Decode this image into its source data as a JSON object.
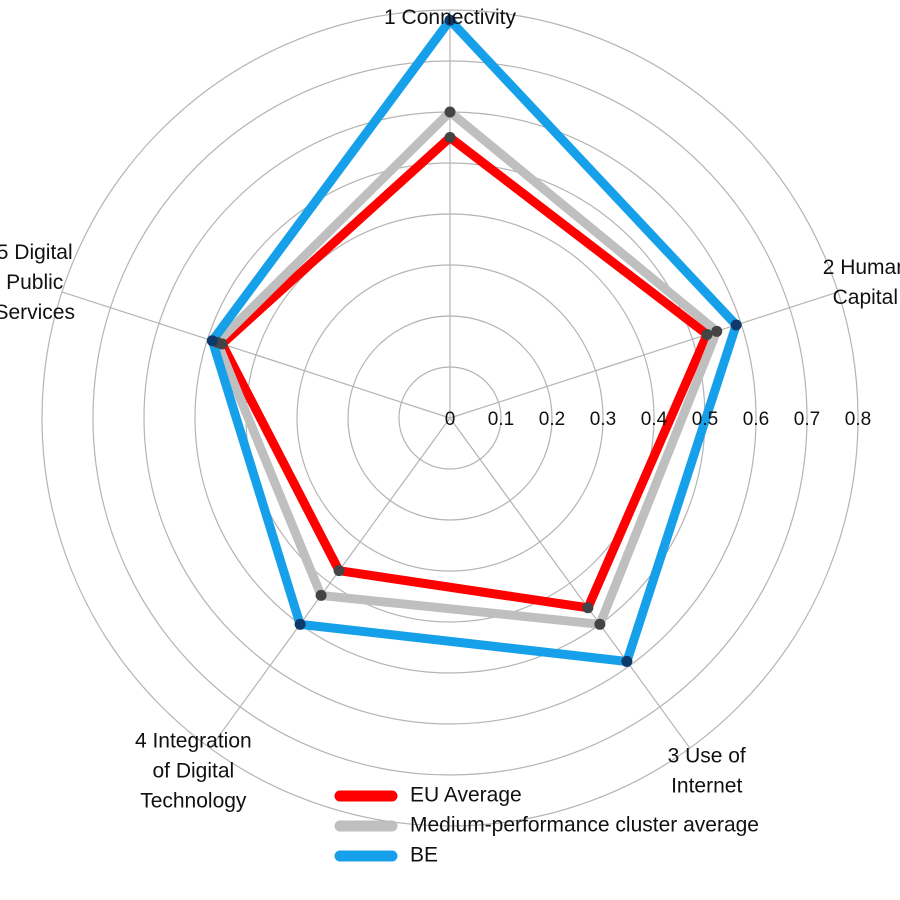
{
  "chart_data": {
    "type": "radar",
    "title": "",
    "axes": [
      {
        "label_lines": [
          "1 Connectivity"
        ]
      },
      {
        "label_lines": [
          "2 Human",
          "Capital"
        ]
      },
      {
        "label_lines": [
          "3 Use of",
          "Internet"
        ]
      },
      {
        "label_lines": [
          "4 Integration",
          "of Digital",
          "Technology"
        ]
      },
      {
        "label_lines": [
          "5 Digital",
          "Public",
          "Services"
        ]
      }
    ],
    "rlim": [
      0,
      0.8
    ],
    "ticks": [
      "0",
      "0.1",
      "0.2",
      "0.3",
      "0.4",
      "0.5",
      "0.6",
      "0.7",
      "0.8"
    ],
    "grid": true,
    "legend_position": "bottom",
    "series": [
      {
        "name": "EU Average",
        "color": "#ff0000",
        "values": [
          0.55,
          0.53,
          0.46,
          0.37,
          0.47
        ]
      },
      {
        "name": "Medium-performance cluster average",
        "color": "#bfbfbf",
        "values": [
          0.6,
          0.55,
          0.5,
          0.43,
          0.48
        ]
      },
      {
        "name": "BE",
        "color": "#16a0ea",
        "values": [
          0.78,
          0.59,
          0.59,
          0.5,
          0.49
        ]
      }
    ]
  }
}
